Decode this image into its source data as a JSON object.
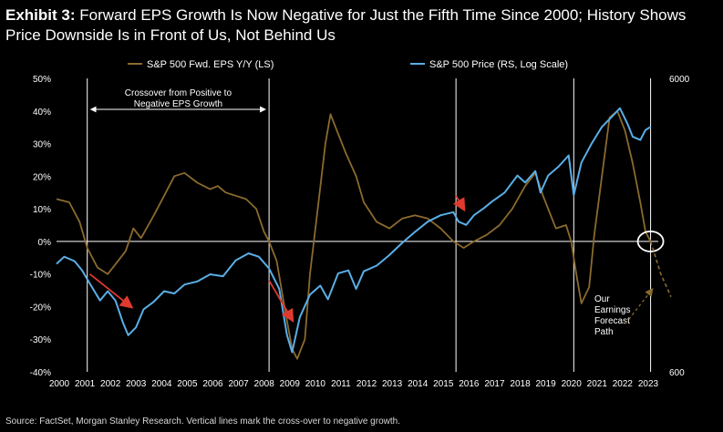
{
  "title": {
    "lead": "Exhibit 3:",
    "text": "Forward EPS Growth Is Now Negative for Just the Fifth Time Since 2000; History Shows Price Downside Is in Front of Us, Not Behind Us"
  },
  "source": "Source: FactSet, Morgan Stanley Research. Vertical lines mark the cross-over to negative growth.",
  "colors": {
    "background": "#000000",
    "eps": "#8b6b2e",
    "price": "#5aaee6",
    "arrow": "#e03a2f",
    "guide": "#ffffff"
  },
  "chart_data": {
    "type": "line",
    "x_ticks": [
      "2000",
      "2001",
      "2002",
      "2003",
      "2004",
      "2005",
      "2006",
      "2007",
      "2008",
      "2009",
      "2010",
      "2011",
      "2012",
      "2013",
      "2014",
      "2015",
      "2016",
      "2017",
      "2018",
      "2019",
      "2020",
      "2021",
      "2022",
      "2023"
    ],
    "y_left": {
      "ticks": [
        "-40%",
        "-30%",
        "-20%",
        "-10%",
        "0%",
        "10%",
        "20%",
        "30%",
        "40%",
        "50%"
      ],
      "range": [
        -40,
        50
      ],
      "unit": "%"
    },
    "y_right": {
      "ticks": [
        "600",
        "6000"
      ],
      "range": [
        600,
        6000
      ],
      "scale": "log"
    },
    "zero_line": 0,
    "series": [
      {
        "name": "S&P 500 Fwd. EPS Y/Y (LS)",
        "axis": "left",
        "color": "#8b6b2e",
        "points": [
          [
            2000.0,
            13
          ],
          [
            2000.5,
            12
          ],
          [
            2000.9,
            6
          ],
          [
            2001.2,
            -2
          ],
          [
            2001.6,
            -8
          ],
          [
            2002.0,
            -10
          ],
          [
            2002.4,
            -6
          ],
          [
            2002.7,
            -3
          ],
          [
            2003.0,
            4
          ],
          [
            2003.3,
            1
          ],
          [
            2003.8,
            8
          ],
          [
            2004.2,
            14
          ],
          [
            2004.6,
            20
          ],
          [
            2005.0,
            21
          ],
          [
            2005.5,
            18
          ],
          [
            2006.0,
            16
          ],
          [
            2006.3,
            17
          ],
          [
            2006.6,
            15
          ],
          [
            2007.0,
            14
          ],
          [
            2007.4,
            13
          ],
          [
            2007.8,
            10
          ],
          [
            2008.1,
            3
          ],
          [
            2008.3,
            0
          ],
          [
            2008.6,
            -6
          ],
          [
            2008.9,
            -20
          ],
          [
            2009.2,
            -33
          ],
          [
            2009.4,
            -36
          ],
          [
            2009.7,
            -30
          ],
          [
            2009.9,
            -10
          ],
          [
            2010.2,
            10
          ],
          [
            2010.5,
            30
          ],
          [
            2010.7,
            39
          ],
          [
            2011.0,
            33
          ],
          [
            2011.3,
            27
          ],
          [
            2011.7,
            20
          ],
          [
            2012.0,
            12
          ],
          [
            2012.5,
            6
          ],
          [
            2013.0,
            4
          ],
          [
            2013.5,
            7
          ],
          [
            2014.0,
            8
          ],
          [
            2014.5,
            7
          ],
          [
            2015.0,
            4
          ],
          [
            2015.5,
            0
          ],
          [
            2015.9,
            -2
          ],
          [
            2016.3,
            0
          ],
          [
            2016.8,
            2
          ],
          [
            2017.3,
            5
          ],
          [
            2017.8,
            10
          ],
          [
            2018.3,
            17
          ],
          [
            2018.7,
            21
          ],
          [
            2019.0,
            14
          ],
          [
            2019.5,
            4
          ],
          [
            2019.9,
            5
          ],
          [
            2020.1,
            0
          ],
          [
            2020.3,
            -10
          ],
          [
            2020.5,
            -19
          ],
          [
            2020.8,
            -14
          ],
          [
            2021.0,
            2
          ],
          [
            2021.3,
            20
          ],
          [
            2021.6,
            38
          ],
          [
            2021.9,
            40
          ],
          [
            2022.2,
            34
          ],
          [
            2022.5,
            24
          ],
          [
            2022.8,
            12
          ],
          [
            2023.0,
            3
          ],
          [
            2023.2,
            0
          ]
        ]
      },
      {
        "name": "S&P 500 Price (RS, Log Scale)",
        "axis": "right",
        "color": "#5aaee6",
        "points": [
          [
            2000.0,
            1400
          ],
          [
            2000.3,
            1480
          ],
          [
            2000.7,
            1430
          ],
          [
            2001.0,
            1330
          ],
          [
            2001.3,
            1200
          ],
          [
            2001.7,
            1050
          ],
          [
            2002.0,
            1130
          ],
          [
            2002.3,
            1050
          ],
          [
            2002.6,
            880
          ],
          [
            2002.8,
            800
          ],
          [
            2003.1,
            850
          ],
          [
            2003.4,
            980
          ],
          [
            2003.8,
            1040
          ],
          [
            2004.2,
            1130
          ],
          [
            2004.6,
            1110
          ],
          [
            2005.0,
            1190
          ],
          [
            2005.5,
            1220
          ],
          [
            2006.0,
            1290
          ],
          [
            2006.5,
            1270
          ],
          [
            2007.0,
            1440
          ],
          [
            2007.5,
            1520
          ],
          [
            2007.9,
            1480
          ],
          [
            2008.3,
            1350
          ],
          [
            2008.7,
            1150
          ],
          [
            2009.0,
            800
          ],
          [
            2009.2,
            700
          ],
          [
            2009.5,
            920
          ],
          [
            2009.9,
            1100
          ],
          [
            2010.3,
            1180
          ],
          [
            2010.6,
            1060
          ],
          [
            2011.0,
            1300
          ],
          [
            2011.4,
            1330
          ],
          [
            2011.7,
            1150
          ],
          [
            2012.0,
            1320
          ],
          [
            2012.5,
            1380
          ],
          [
            2013.0,
            1500
          ],
          [
            2013.5,
            1650
          ],
          [
            2014.0,
            1800
          ],
          [
            2014.5,
            1950
          ],
          [
            2015.0,
            2050
          ],
          [
            2015.5,
            2100
          ],
          [
            2015.7,
            1950
          ],
          [
            2016.0,
            1900
          ],
          [
            2016.3,
            2050
          ],
          [
            2016.7,
            2170
          ],
          [
            2017.0,
            2280
          ],
          [
            2017.5,
            2450
          ],
          [
            2018.0,
            2800
          ],
          [
            2018.3,
            2650
          ],
          [
            2018.7,
            2900
          ],
          [
            2018.9,
            2450
          ],
          [
            2019.2,
            2800
          ],
          [
            2019.6,
            3000
          ],
          [
            2020.0,
            3280
          ],
          [
            2020.2,
            2400
          ],
          [
            2020.5,
            3100
          ],
          [
            2020.9,
            3600
          ],
          [
            2021.3,
            4100
          ],
          [
            2021.7,
            4450
          ],
          [
            2022.0,
            4750
          ],
          [
            2022.3,
            4200
          ],
          [
            2022.5,
            3800
          ],
          [
            2022.8,
            3700
          ],
          [
            2023.0,
            4000
          ],
          [
            2023.2,
            4100
          ]
        ]
      }
    ],
    "crossover_lines": [
      2001.2,
      2008.3,
      2015.6,
      2020.2,
      2023.2
    ],
    "annotations": {
      "crossover_label_lines": [
        "Crossover from Positive to",
        "Negative EPS Growth"
      ],
      "crossover_arrow_span": [
        2001.2,
        2008.3
      ],
      "forecast_label_lines": [
        "Our",
        "Earnings",
        "Forecast",
        "Path"
      ],
      "forecast_path": [
        [
          2023.2,
          0
        ],
        [
          2023.6,
          -10
        ],
        [
          2024.0,
          -17
        ]
      ],
      "decline_arrows": [
        [
          2001.3,
          -10,
          2002.9,
          -20
        ],
        [
          2008.3,
          -12,
          2009.2,
          -24
        ],
        [
          2015.6,
          14,
          2015.9,
          10
        ]
      ],
      "circle_center": [
        2023.2,
        0
      ]
    },
    "legend_position": "top",
    "grid": false
  }
}
